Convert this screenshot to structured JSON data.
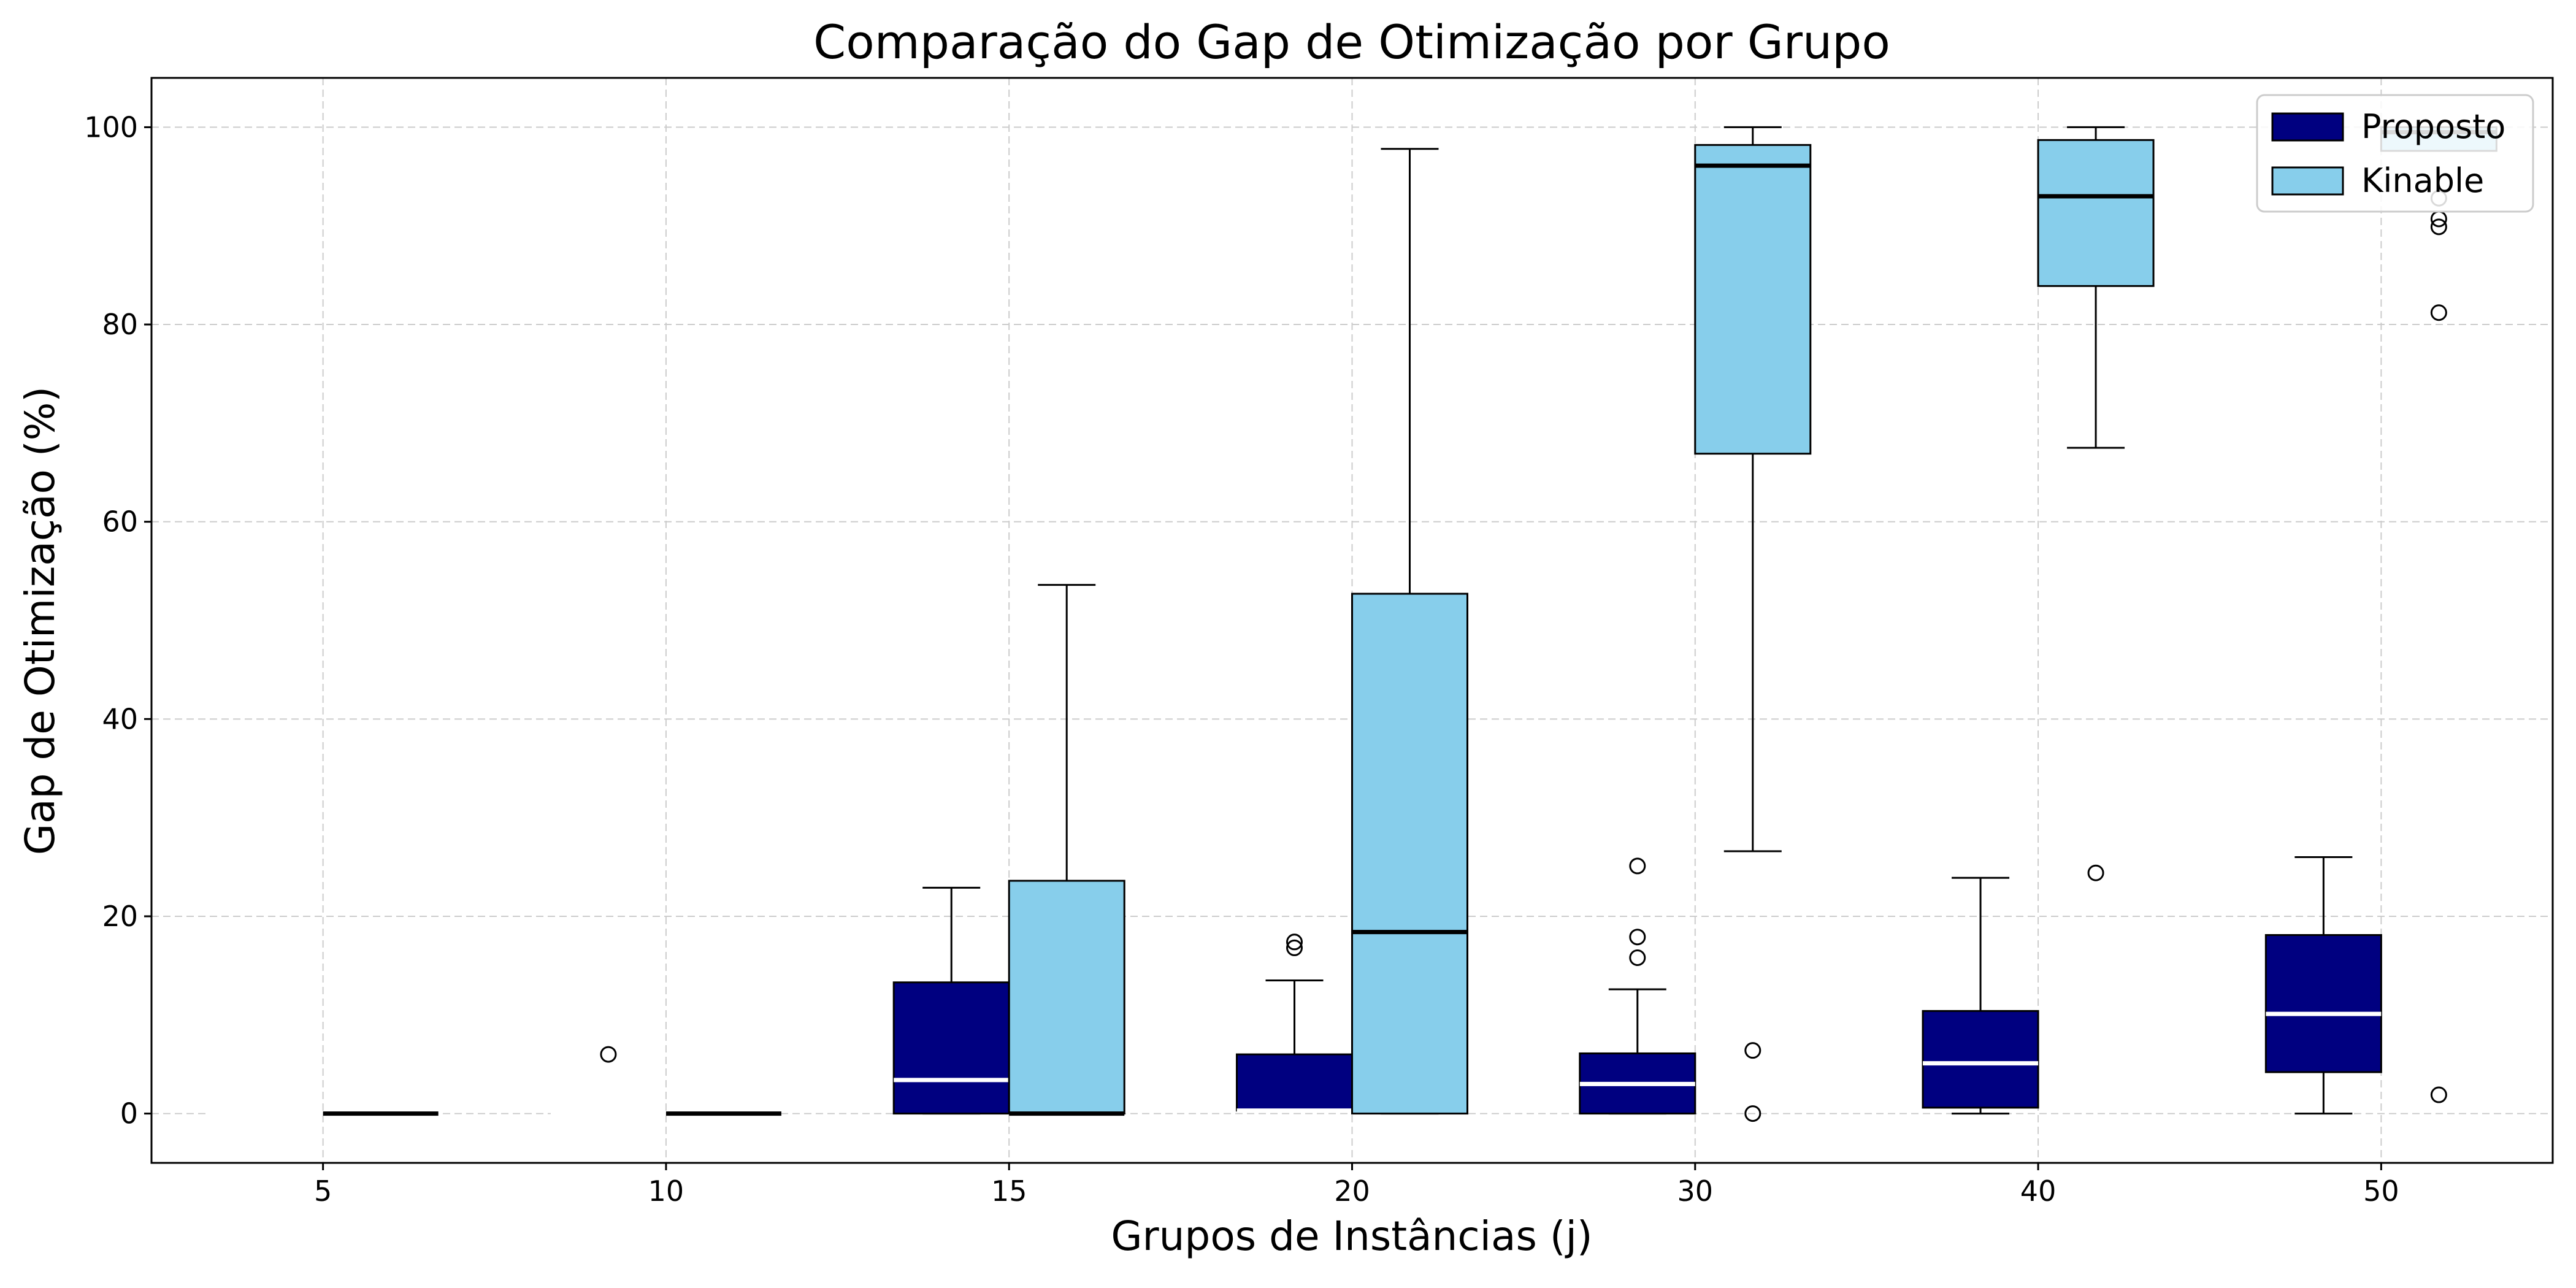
{
  "chart_data": {
    "type": "box",
    "title": "Comparação do Gap de Otimização por Grupo",
    "xlabel": "Grupos de Instâncias (j)",
    "ylabel": "Gap de Otimização (%)",
    "categories": [
      "5",
      "10",
      "15",
      "20",
      "30",
      "40",
      "50"
    ],
    "ylim": [
      -5,
      105
    ],
    "yticks": [
      0,
      20,
      40,
      60,
      80,
      100
    ],
    "grid": true,
    "legend_position": "top-right",
    "series": [
      {
        "name": "Proposto",
        "color": "#000080",
        "median_color": "#ffffff",
        "boxes": [
          {
            "q1": 0,
            "median": 0,
            "q3": 0,
            "whisker_low": 0,
            "whisker_high": 0,
            "outliers": []
          },
          {
            "q1": 0,
            "median": 0,
            "q3": 0,
            "whisker_low": 0,
            "whisker_high": 0,
            "outliers": [
              6.0
            ]
          },
          {
            "q1": 0,
            "median": 3.4,
            "q3": 13.3,
            "whisker_low": 0,
            "whisker_high": 22.9,
            "outliers": []
          },
          {
            "q1": 0.3,
            "median": 0.3,
            "q3": 6.0,
            "whisker_low": 0.3,
            "whisker_high": 13.5,
            "outliers": [
              16.8,
              17.4
            ]
          },
          {
            "q1": 0,
            "median": 3.0,
            "q3": 6.1,
            "whisker_low": 0,
            "whisker_high": 12.6,
            "outliers": [
              15.8,
              17.9,
              25.1
            ]
          },
          {
            "q1": 0.6,
            "median": 5.1,
            "q3": 10.4,
            "whisker_low": 0,
            "whisker_high": 23.9,
            "outliers": []
          },
          {
            "q1": 4.2,
            "median": 10.1,
            "q3": 18.1,
            "whisker_low": 0,
            "whisker_high": 26.0,
            "outliers": []
          }
        ]
      },
      {
        "name": "Kinable",
        "color": "#87CEEB",
        "median_color": "#000000",
        "boxes": [
          {
            "q1": 0,
            "median": 0,
            "q3": 0,
            "whisker_low": 0,
            "whisker_high": 0,
            "outliers": []
          },
          {
            "q1": 0,
            "median": 0,
            "q3": 0,
            "whisker_low": 0,
            "whisker_high": 0,
            "outliers": []
          },
          {
            "q1": 0,
            "median": 0,
            "q3": 23.6,
            "whisker_low": 0,
            "whisker_high": 53.6,
            "outliers": []
          },
          {
            "q1": 0,
            "median": 18.4,
            "q3": 52.7,
            "whisker_low": 0,
            "whisker_high": 97.8,
            "outliers": []
          },
          {
            "q1": 66.9,
            "median": 96.1,
            "q3": 98.2,
            "whisker_low": 26.6,
            "whisker_high": 100,
            "outliers": [
              0,
              6.4
            ]
          },
          {
            "q1": 83.9,
            "median": 93.0,
            "q3": 98.7,
            "whisker_low": 67.5,
            "whisker_high": 100,
            "outliers": [
              24.4
            ]
          },
          {
            "q1": 97.6,
            "median": 99.5,
            "q3": 100,
            "whisker_low": 97.6,
            "whisker_high": 100,
            "outliers": [
              1.9,
              81.2,
              89.9,
              90.7,
              92.8
            ]
          }
        ]
      }
    ]
  }
}
